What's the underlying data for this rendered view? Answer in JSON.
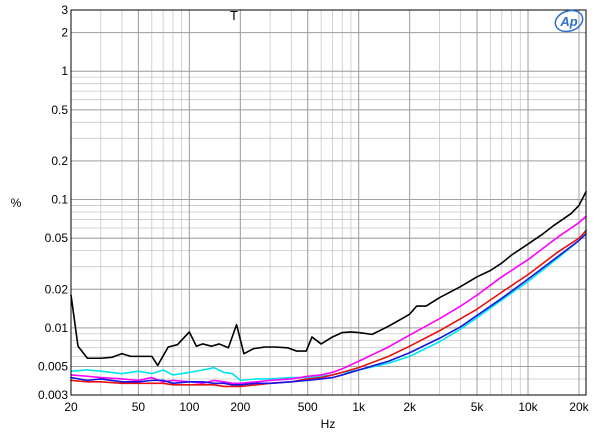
{
  "chart_data": {
    "type": "line",
    "title": "T",
    "xlabel": "Hz",
    "ylabel": "%",
    "x_scale": "log",
    "y_scale": "log",
    "xlim": [
      20,
      22000
    ],
    "ylim": [
      0.003,
      3
    ],
    "x_ticks": [
      {
        "value": 20,
        "label": "20"
      },
      {
        "value": 50,
        "label": "50"
      },
      {
        "value": 100,
        "label": "100"
      },
      {
        "value": 200,
        "label": "200"
      },
      {
        "value": 500,
        "label": "500"
      },
      {
        "value": 1000,
        "label": "1k"
      },
      {
        "value": 2000,
        "label": "2k"
      },
      {
        "value": 5000,
        "label": "5k"
      },
      {
        "value": 10000,
        "label": "10k"
      },
      {
        "value": 20000,
        "label": "20k"
      }
    ],
    "y_ticks": [
      {
        "value": 3,
        "label": "3"
      },
      {
        "value": 2,
        "label": "2"
      },
      {
        "value": 1,
        "label": "1"
      },
      {
        "value": 0.5,
        "label": "0.5"
      },
      {
        "value": 0.2,
        "label": "0.2"
      },
      {
        "value": 0.1,
        "label": "0.1"
      },
      {
        "value": 0.05,
        "label": "0.05"
      },
      {
        "value": 0.02,
        "label": "0.02"
      },
      {
        "value": 0.01,
        "label": "0.01"
      },
      {
        "value": 0.005,
        "label": "0.005"
      },
      {
        "value": 0.003,
        "label": "0.003"
      }
    ],
    "grid": true,
    "series": [
      {
        "color": "#000000",
        "x": [
          20,
          22,
          25,
          30,
          35,
          40,
          45,
          50,
          60,
          65,
          75,
          85,
          100,
          110,
          120,
          135,
          150,
          170,
          190,
          210,
          240,
          280,
          320,
          380,
          430,
          490,
          530,
          600,
          700,
          800,
          900,
          1000,
          1200,
          1500,
          1800,
          2000,
          2200,
          2500,
          3000,
          4000,
          5000,
          6000,
          7000,
          8000,
          10000,
          12000,
          14000,
          16000,
          18000,
          20000,
          22000
        ],
        "y": [
          0.018,
          0.0072,
          0.0058,
          0.0058,
          0.0059,
          0.0063,
          0.006,
          0.006,
          0.006,
          0.0051,
          0.0071,
          0.0074,
          0.0093,
          0.0072,
          0.0075,
          0.0072,
          0.0075,
          0.007,
          0.0106,
          0.0063,
          0.0069,
          0.0071,
          0.0071,
          0.007,
          0.0066,
          0.0066,
          0.0085,
          0.0075,
          0.0085,
          0.0092,
          0.0093,
          0.0092,
          0.0089,
          0.0103,
          0.0118,
          0.0128,
          0.0148,
          0.0148,
          0.0172,
          0.021,
          0.025,
          0.028,
          0.032,
          0.037,
          0.045,
          0.053,
          0.062,
          0.07,
          0.078,
          0.09,
          0.115
        ]
      },
      {
        "color": "#00e5ee",
        "x": [
          20,
          25,
          30,
          40,
          50,
          60,
          70,
          80,
          100,
          120,
          140,
          160,
          180,
          200,
          250,
          300,
          400,
          500,
          600,
          700,
          800,
          1000,
          1500,
          2000,
          3000,
          4000,
          5000,
          7000,
          10000,
          15000,
          20000,
          22000
        ],
        "y": [
          0.0046,
          0.0047,
          0.0046,
          0.0044,
          0.0046,
          0.0044,
          0.0047,
          0.0043,
          0.0045,
          0.0047,
          0.0049,
          0.0045,
          0.0044,
          0.0039,
          0.004,
          0.004,
          0.0041,
          0.0041,
          0.0042,
          0.0043,
          0.0045,
          0.0047,
          0.0053,
          0.006,
          0.0078,
          0.0098,
          0.012,
          0.0165,
          0.023,
          0.035,
          0.048,
          0.058
        ]
      },
      {
        "color": "#ff00ff",
        "x": [
          20,
          25,
          30,
          40,
          50,
          60,
          70,
          80,
          100,
          120,
          140,
          160,
          180,
          200,
          250,
          300,
          400,
          500,
          600,
          700,
          800,
          1000,
          1500,
          2000,
          3000,
          4000,
          5000,
          7000,
          10000,
          15000,
          20000,
          22000
        ],
        "y": [
          0.0043,
          0.0042,
          0.0041,
          0.004,
          0.0039,
          0.0041,
          0.0038,
          0.0039,
          0.0038,
          0.0037,
          0.0039,
          0.0038,
          0.0037,
          0.0037,
          0.0038,
          0.0039,
          0.004,
          0.0042,
          0.0043,
          0.0045,
          0.0048,
          0.0055,
          0.0071,
          0.0088,
          0.0118,
          0.0148,
          0.018,
          0.025,
          0.034,
          0.051,
          0.066,
          0.074
        ]
      },
      {
        "color": "#e81010",
        "x": [
          20,
          25,
          30,
          40,
          50,
          60,
          70,
          80,
          100,
          120,
          140,
          160,
          180,
          200,
          250,
          300,
          400,
          500,
          600,
          700,
          800,
          1000,
          1500,
          2000,
          3000,
          4000,
          5000,
          7000,
          10000,
          15000,
          20000,
          22000
        ],
        "y": [
          0.0039,
          0.0038,
          0.0038,
          0.0037,
          0.0037,
          0.0037,
          0.0037,
          0.0036,
          0.0036,
          0.0036,
          0.0036,
          0.0035,
          0.0035,
          0.0035,
          0.0036,
          0.0037,
          0.0038,
          0.004,
          0.0041,
          0.0043,
          0.0045,
          0.0049,
          0.006,
          0.0072,
          0.0095,
          0.0118,
          0.014,
          0.019,
          0.026,
          0.039,
          0.05,
          0.057
        ]
      },
      {
        "color": "#1515e6",
        "x": [
          20,
          25,
          30,
          40,
          50,
          60,
          70,
          80,
          100,
          120,
          140,
          160,
          180,
          200,
          250,
          300,
          400,
          500,
          600,
          700,
          800,
          1000,
          1500,
          2000,
          3000,
          4000,
          5000,
          7000,
          10000,
          15000,
          20000,
          22000
        ],
        "y": [
          0.0041,
          0.0039,
          0.004,
          0.0038,
          0.0038,
          0.0039,
          0.0039,
          0.0037,
          0.0038,
          0.0038,
          0.0037,
          0.0037,
          0.0036,
          0.0036,
          0.0037,
          0.0037,
          0.0038,
          0.0039,
          0.004,
          0.0041,
          0.0043,
          0.0047,
          0.0055,
          0.0064,
          0.0083,
          0.0102,
          0.0125,
          0.017,
          0.024,
          0.036,
          0.048,
          0.054
        ]
      }
    ]
  },
  "logo": {
    "text": "Ap",
    "color": "#2a6fc9"
  }
}
